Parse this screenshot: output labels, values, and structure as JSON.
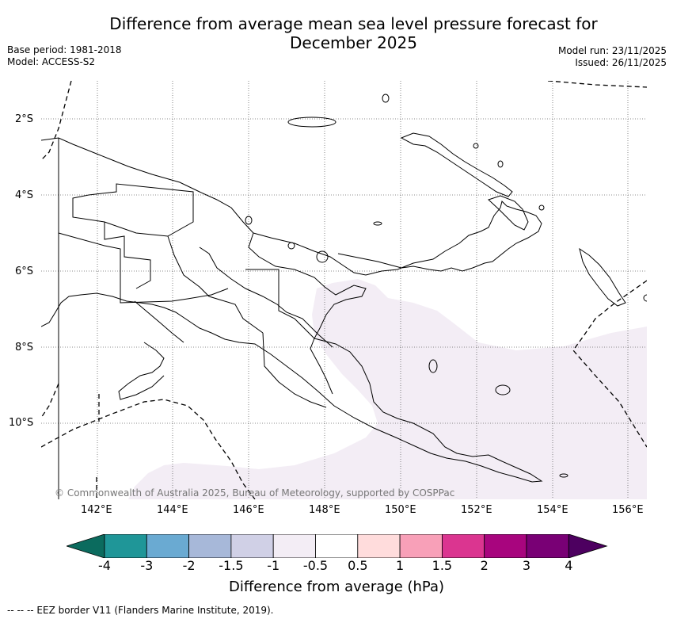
{
  "title_line1": "Difference from average mean sea level pressure forecast for",
  "title_line2": "December 2025",
  "base_period": "Base period: 1981-2018",
  "model": "Model: ACCESS-S2",
  "model_run": "Model run: 23/11/2025",
  "issued": "Issued: 26/11/2025",
  "copyright": "© Commonwealth of Australia 2025, Bureau of Meteorology, supported by COSPPac",
  "lon_labels": [
    "142°E",
    "144°E",
    "146°E",
    "148°E",
    "150°E",
    "152°E",
    "154°E",
    "156°E"
  ],
  "lat_labels": [
    "2°S",
    "4°S",
    "6°S",
    "8°S",
    "10°S"
  ],
  "colorbar": {
    "ticks": [
      "-4",
      "-3",
      "-2",
      "-1.5",
      "-1",
      "-0.5",
      "0.5",
      "1",
      "1.5",
      "2",
      "3",
      "4"
    ],
    "colors": [
      "#0b6b5e",
      "#1f9698",
      "#6aaad2",
      "#a7b8d9",
      "#d0d0e6",
      "#f3edf5",
      "#ffffff",
      "#ffdcdc",
      "#f8a0b8",
      "#db3590",
      "#a8057e",
      "#790075",
      "#4d0060"
    ],
    "label": "Difference from average (hPa)"
  },
  "footer": "--  --  -- EEZ border V11 (Flanders Marine Institute, 2019).",
  "map_data": {
    "domain_lon": [
      141,
      156.5
    ],
    "domain_lat": [
      -1,
      -11.9
    ],
    "shaded_anomaly_class": "-0.5"
  }
}
